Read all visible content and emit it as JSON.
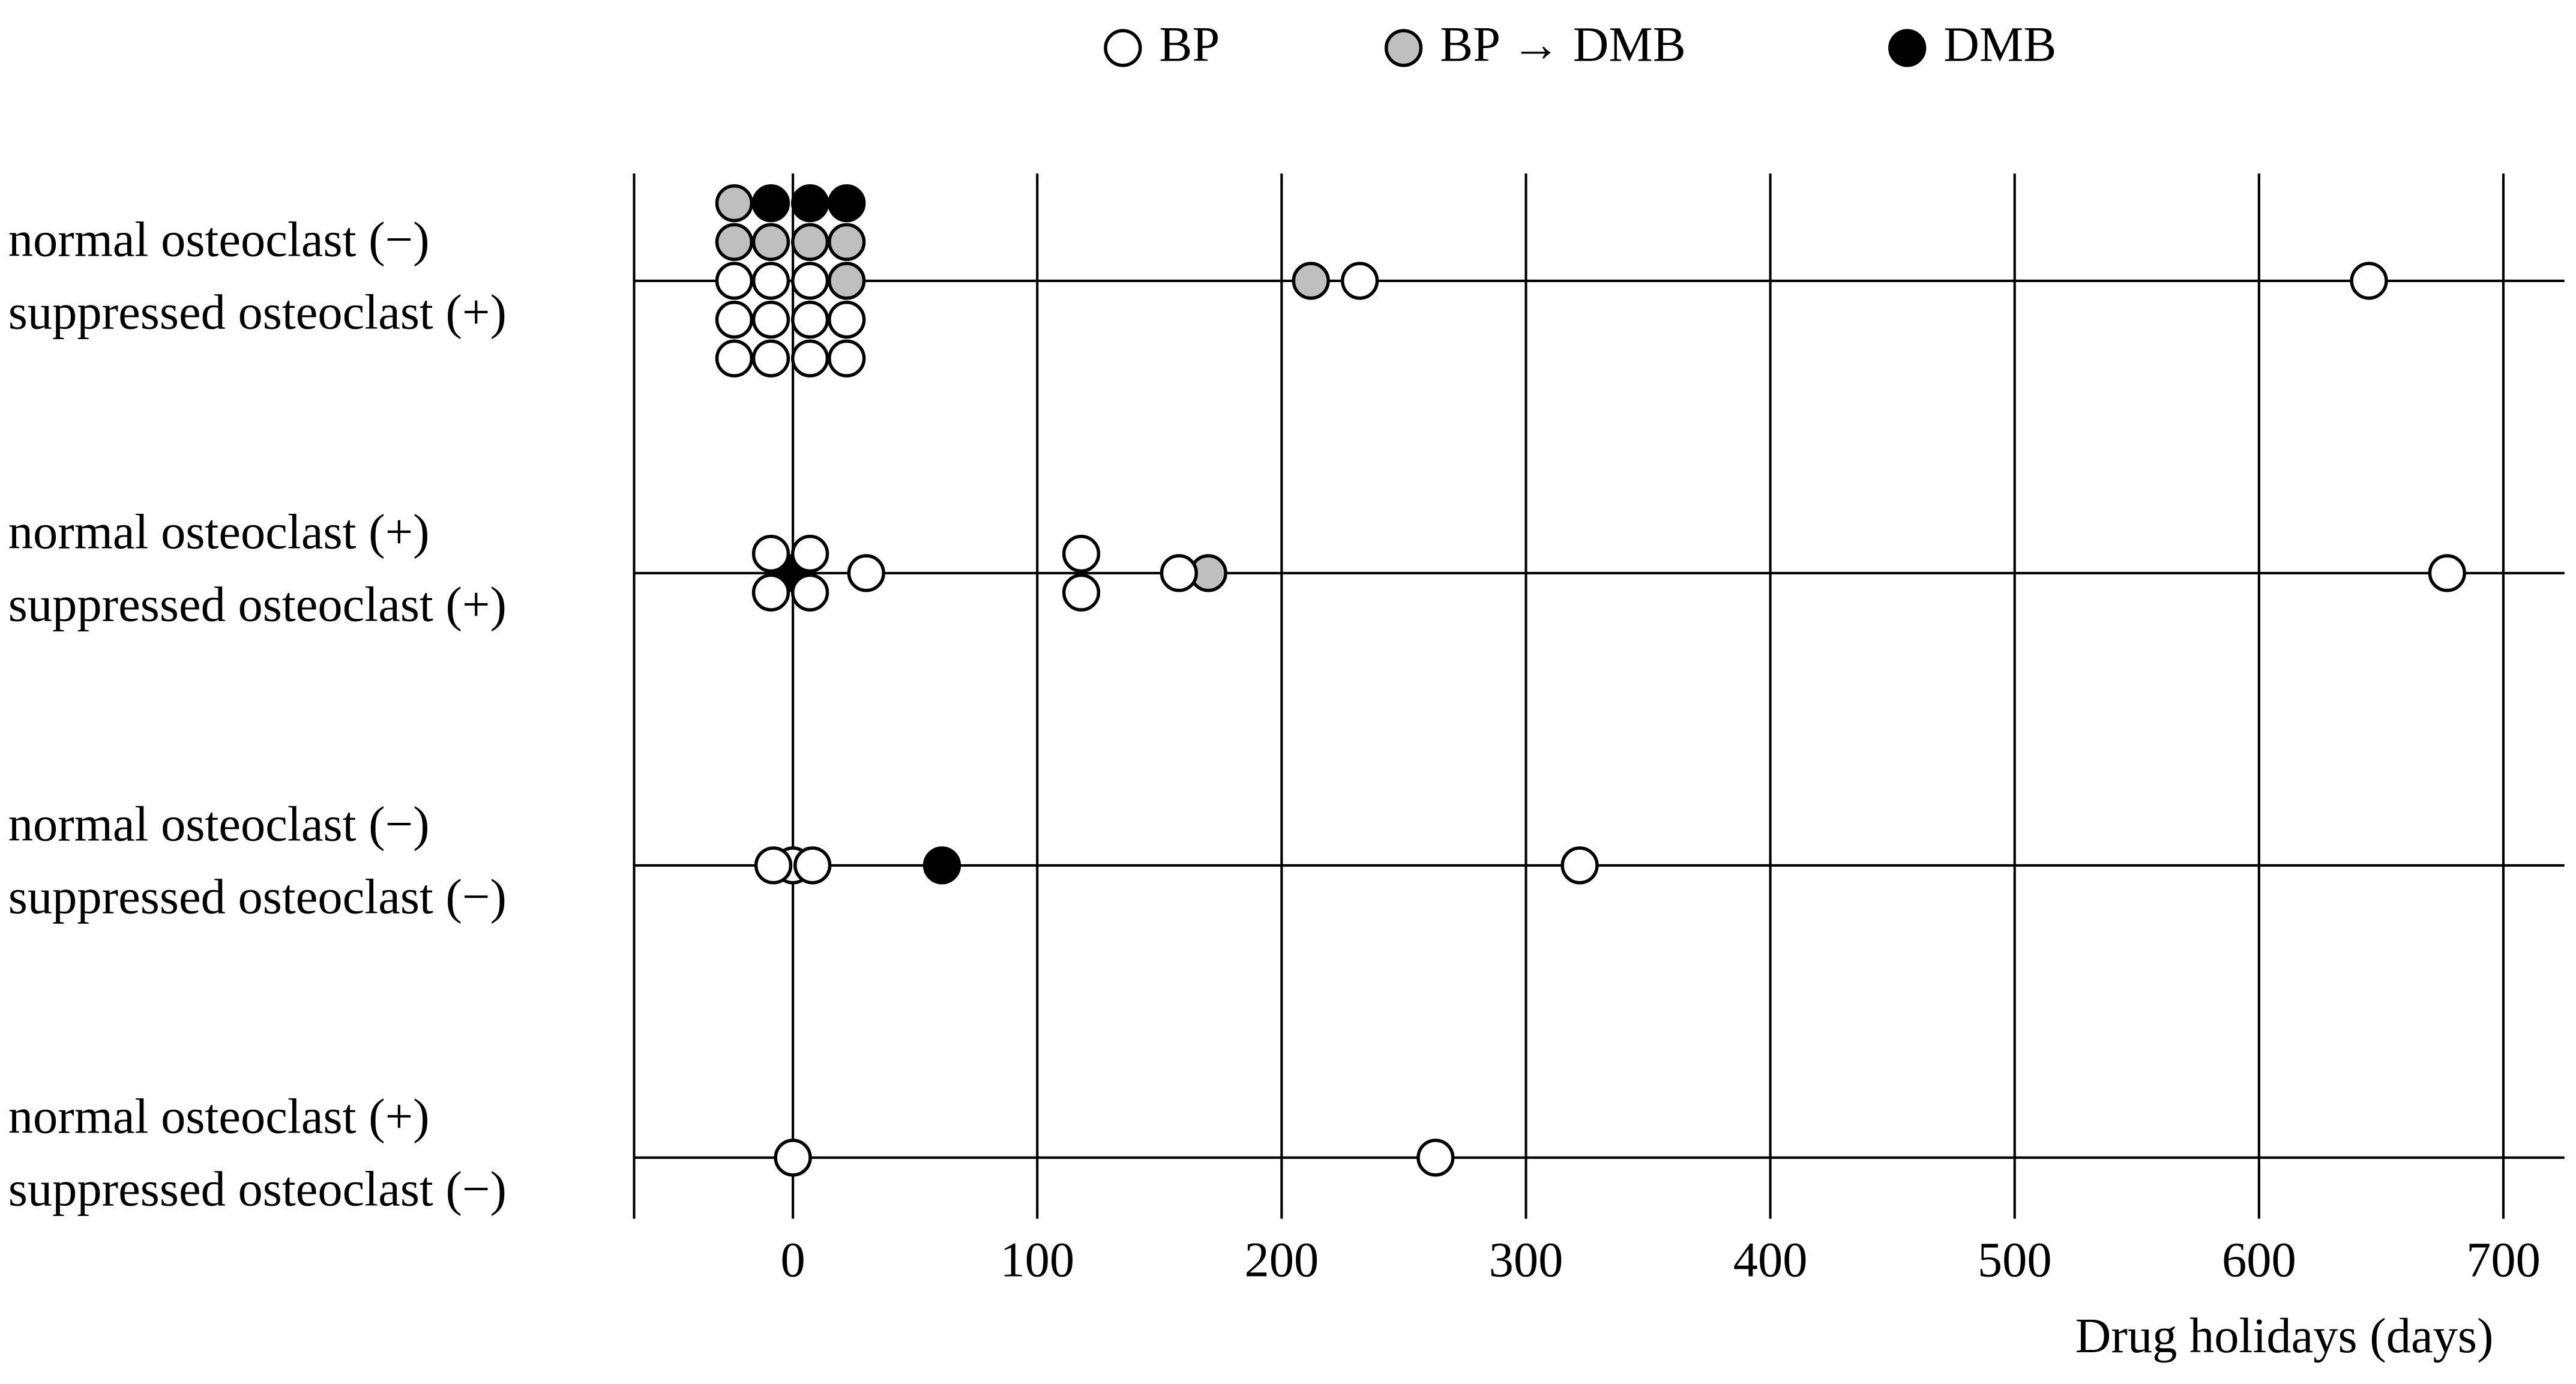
{
  "chart_data": {
    "type": "dot",
    "x_label": "Drug holidays (days)",
    "categories": [
      [
        "normal osteoclast (−)",
        "suppressed osteoclast (+)"
      ],
      [
        "normal osteoclast (+)",
        "suppressed osteoclast (+)"
      ],
      [
        "normal osteoclast (−)",
        "suppressed osteoclast (−)"
      ],
      [
        "normal osteoclast (+)",
        "suppressed osteoclast (−)"
      ]
    ],
    "series": [
      {
        "name": "DMB",
        "color": "#000000",
        "values": [
          [
            -9,
            7,
            22
          ],
          [
            0
          ],
          [
            61
          ],
          []
        ]
      },
      {
        "name": "BP → DMB",
        "color": "#bfbfbf",
        "values": [
          [
            -24,
            -24,
            -9,
            7,
            22,
            22,
            212
          ],
          [
            170
          ],
          [],
          []
        ]
      },
      {
        "name": "BP",
        "color": "#ffffff",
        "values": [
          [
            -24,
            -24,
            -24,
            -9,
            -9,
            -9,
            7,
            7,
            7,
            22,
            22,
            232,
            645
          ],
          [
            -9,
            -9,
            7,
            7,
            30,
            118,
            118,
            158,
            677
          ],
          [
            0,
            -8,
            8,
            322
          ],
          [
            0,
            263
          ]
        ]
      }
    ],
    "legend_order": [
      "BP",
      "BP → DMB",
      "DMB"
    ],
    "xlim": [
      -65,
      725
    ],
    "xticks": [
      0,
      100,
      200,
      300,
      400,
      500,
      600,
      700
    ],
    "grid": true
  }
}
